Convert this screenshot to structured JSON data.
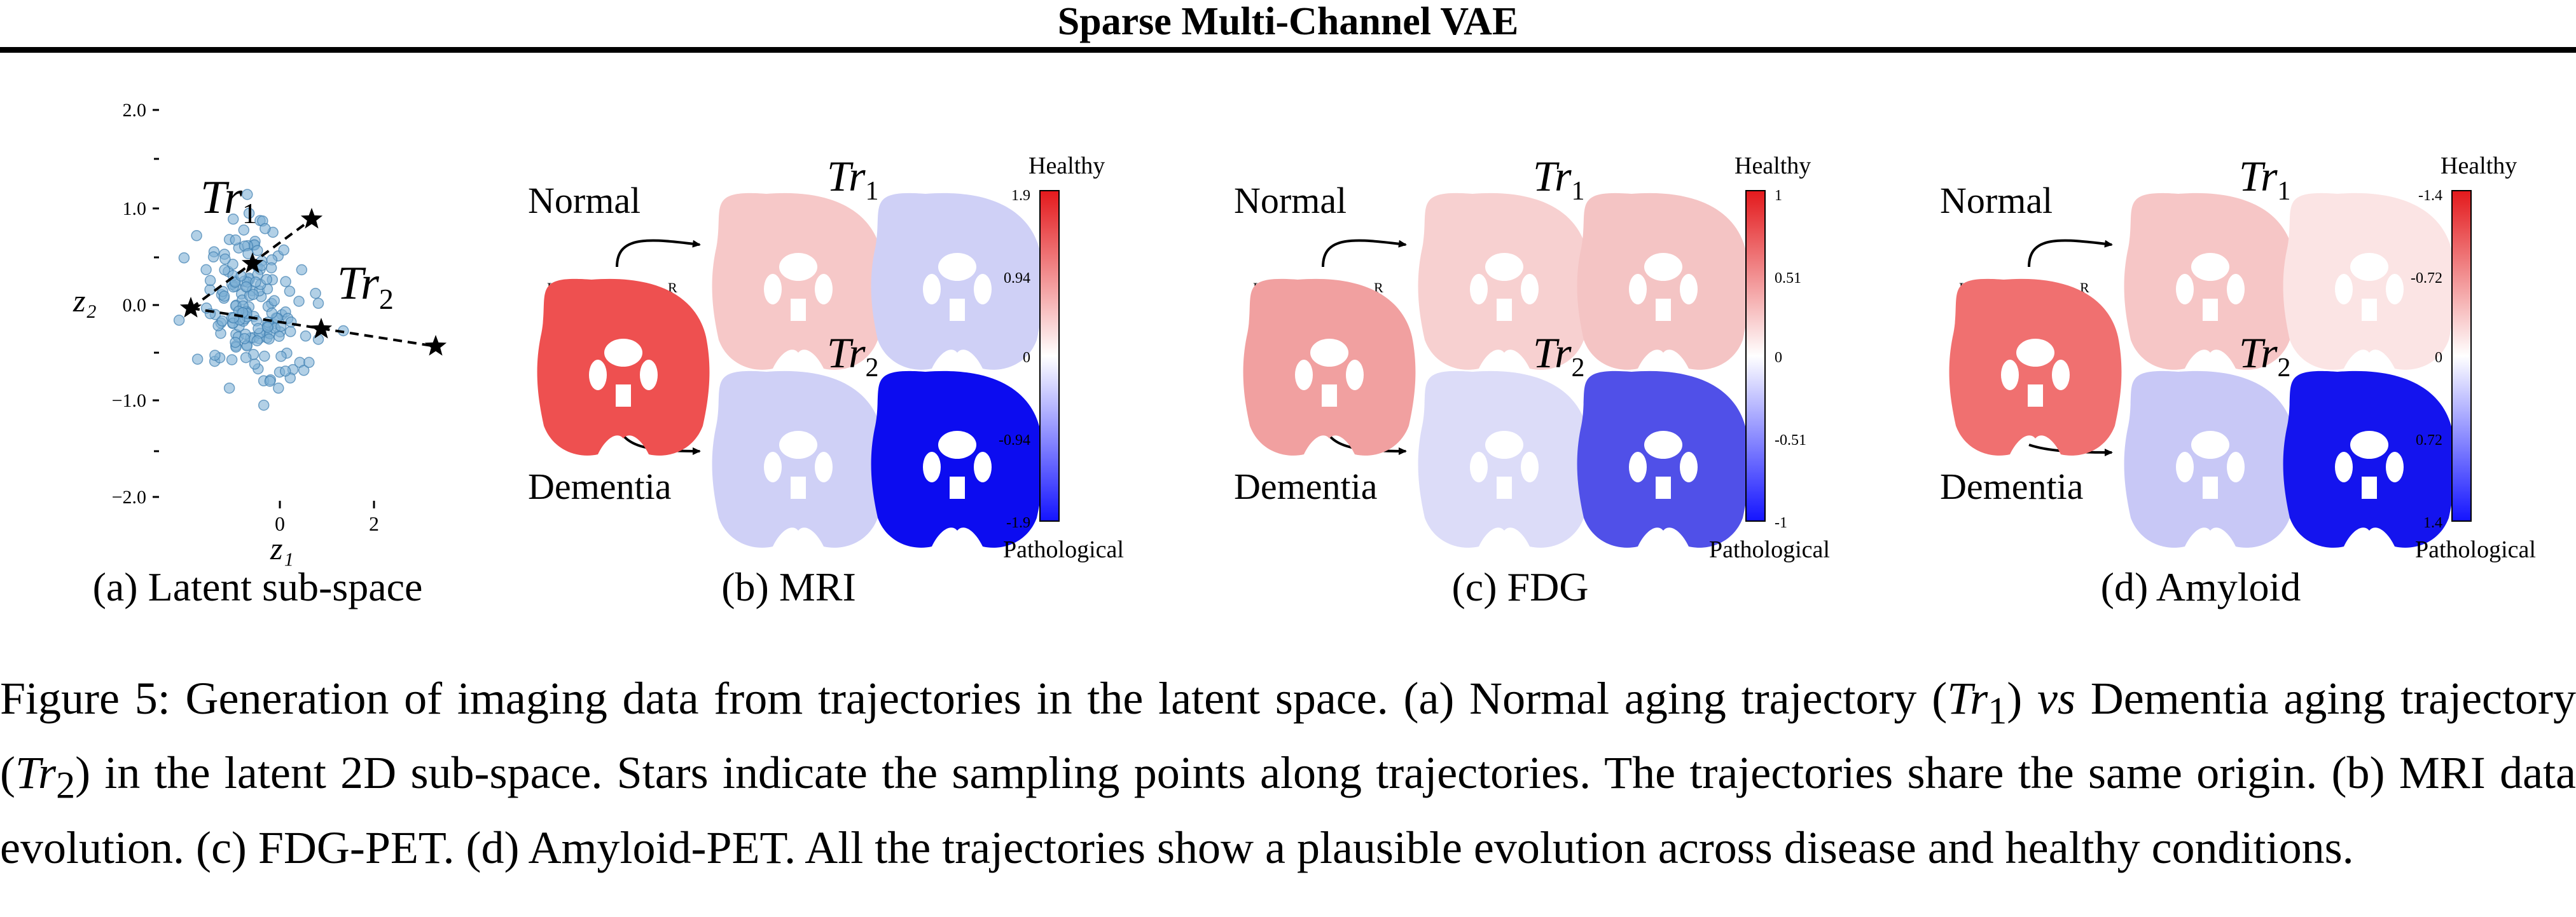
{
  "header": {
    "title": "Sparse Multi-Channel VAE"
  },
  "panels": {
    "latent": {
      "subcaption": "(a) Latent sub-space",
      "ytick_labels": [
        "2.0",
        "1.0",
        "0.0",
        "−1.0",
        "−2.0"
      ],
      "xtick_labels": [
        "0",
        "2"
      ],
      "ylabel": "z₂",
      "xlabel": "z₁",
      "tr1_label": "Tr",
      "tr1_sub": "1",
      "tr2_label": "Tr",
      "tr2_sub": "2"
    },
    "mri": {
      "subcaption": "(b) MRI",
      "normal_label": "Normal",
      "dementia_label": "Dementia",
      "left_marker": "L",
      "right_marker": "R",
      "tr1_label": "Tr",
      "tr1_sub": "1",
      "tr2_label": "Tr",
      "tr2_sub": "2",
      "colorbar_top": "Healthy",
      "colorbar_bottom": "Pathological",
      "colorbar_ticks": [
        "1.9",
        "0.94",
        "0",
        "-0.94",
        "-1.9"
      ]
    },
    "fdg": {
      "subcaption": "(c) FDG",
      "normal_label": "Normal",
      "dementia_label": "Dementia",
      "left_marker": "L",
      "right_marker": "R",
      "tr1_label": "Tr",
      "tr1_sub": "1",
      "tr2_label": "Tr",
      "tr2_sub": "2",
      "colorbar_top": "Healthy",
      "colorbar_bottom": "Pathological",
      "colorbar_ticks": [
        "1",
        "0.51",
        "0",
        "-0.51",
        "-1"
      ]
    },
    "amyloid": {
      "subcaption": "(d) Amyloid",
      "normal_label": "Normal",
      "dementia_label": "Dementia",
      "left_marker": "L",
      "right_marker": "R",
      "tr1_label": "Tr",
      "tr1_sub": "1",
      "tr2_label": "Tr",
      "tr2_sub": "2",
      "colorbar_top": "Healthy",
      "colorbar_bottom": "Pathological",
      "colorbar_ticks": [
        "-1.4",
        "-0.72",
        "0",
        "0.72",
        "1.4"
      ]
    }
  },
  "caption": {
    "p1": "Figure 5: Generation of imaging data from trajectories in the latent space. (a) Normal aging trajectory (",
    "tr1": "Tr",
    "sub1": "1",
    "p2": ") ",
    "vs": "vs",
    "p3": " Dementia aging trajectory (",
    "tr2": "Tr",
    "sub2": "2",
    "p4": ") in the latent 2D sub-space. Stars indicate the sampling points along trajectories. The trajectories share the same origin. (b) MRI data evolution. (c) FDG-PET. (d) Amyloid-PET. All the trajectories show a plausible evolution across disease and healthy conditions."
  },
  "colors": {
    "scatter_point": "#7fb0d6",
    "scatter_edge": "#3f7fb0",
    "healthy_red": "#e53a3a",
    "pathological_blue": "#1010ee"
  }
}
